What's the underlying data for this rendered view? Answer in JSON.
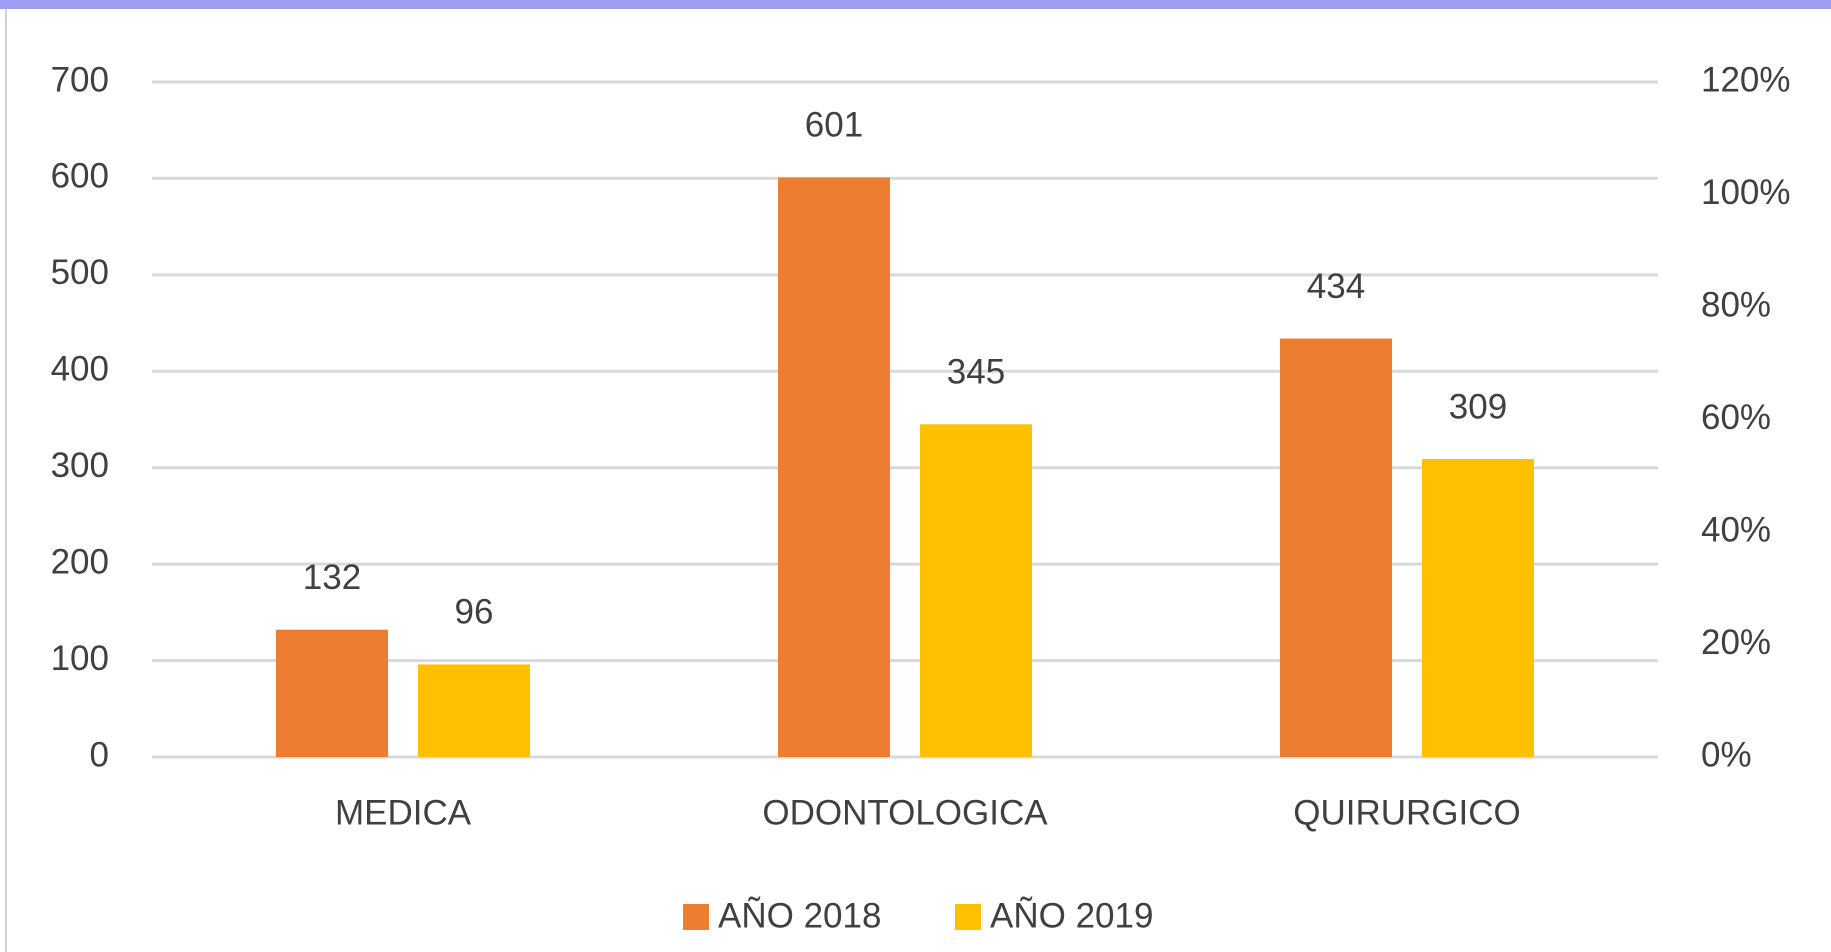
{
  "chart_data": {
    "type": "bar",
    "categories": [
      "MEDICA",
      "ODONTOLOGICA",
      "QUIRURGICO"
    ],
    "series": [
      {
        "name": "AÑO 2018",
        "color": "#ED7D31",
        "values": [
          132,
          601,
          434
        ]
      },
      {
        "name": "AÑO 2019",
        "color": "#FFC000",
        "values": [
          96,
          345,
          309
        ]
      }
    ],
    "ylim": [
      0,
      700
    ],
    "yticks": [
      0,
      100,
      200,
      300,
      400,
      500,
      600,
      700
    ],
    "y2lim": [
      0,
      120
    ],
    "y2ticks": [
      {
        "value": 0,
        "label": "0%"
      },
      {
        "value": 20,
        "label": "20%"
      },
      {
        "value": 40,
        "label": "40%"
      },
      {
        "value": 60,
        "label": "60%"
      },
      {
        "value": 80,
        "label": "80%"
      },
      {
        "value": 100,
        "label": "100%"
      },
      {
        "value": 120,
        "label": "120%"
      }
    ],
    "grid": true,
    "legend": "bottom"
  }
}
